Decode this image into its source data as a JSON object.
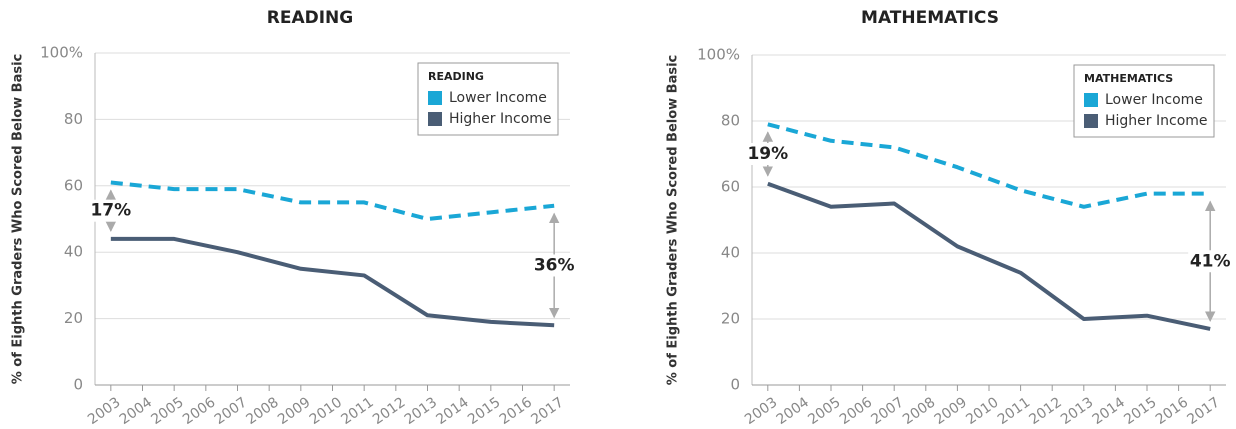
{
  "chart_data": [
    {
      "type": "line",
      "title": "READING",
      "ylabel": "% of Eighth Graders Who Scored Below Basic",
      "legend_title": "READING",
      "x": [
        2003,
        2005,
        2007,
        2009,
        2011,
        2013,
        2015,
        2017
      ],
      "xlim": [
        2002.5,
        2017.5
      ],
      "xticks": [
        2003,
        2004,
        2005,
        2006,
        2007,
        2008,
        2009,
        2010,
        2011,
        2012,
        2013,
        2014,
        2015,
        2016,
        2017
      ],
      "ylim": [
        0,
        100
      ],
      "yticks": [
        0,
        20,
        40,
        60,
        80,
        {
          "value": 100,
          "label": "100%"
        }
      ],
      "grid": true,
      "legend": "upper right",
      "series": [
        {
          "name": "Lower Income",
          "color": "#1aa7d6",
          "dashed": true,
          "values": [
            61,
            59,
            59,
            55,
            55,
            50,
            52,
            54
          ]
        },
        {
          "name": "Higher Income",
          "color": "#4a5d75",
          "dashed": false,
          "values": [
            44,
            44,
            40,
            35,
            33,
            21,
            19,
            18
          ]
        }
      ],
      "annotations": [
        {
          "text": "17%",
          "x": 2003
        },
        {
          "text": "36%",
          "x": 2017
        }
      ]
    },
    {
      "type": "line",
      "title": "MATHEMATICS",
      "ylabel": "% of Eighth Graders Who Scored Below Basic",
      "legend_title": "MATHEMATICS",
      "x": [
        2003,
        2005,
        2007,
        2009,
        2011,
        2013,
        2015,
        2017
      ],
      "xlim": [
        2002.5,
        2017.5
      ],
      "xticks": [
        2003,
        2004,
        2005,
        2006,
        2007,
        2008,
        2009,
        2010,
        2011,
        2012,
        2013,
        2014,
        2015,
        2016,
        2017
      ],
      "ylim": [
        0,
        100
      ],
      "yticks": [
        0,
        20,
        40,
        60,
        80,
        {
          "value": 100,
          "label": "100%"
        }
      ],
      "grid": true,
      "legend": "upper right",
      "series": [
        {
          "name": "Lower Income",
          "color": "#1aa7d6",
          "dashed": true,
          "values": [
            79,
            74,
            72,
            66,
            59,
            54,
            58,
            58
          ]
        },
        {
          "name": "Higher Income",
          "color": "#4a5d75",
          "dashed": false,
          "values": [
            61,
            54,
            55,
            42,
            34,
            20,
            21,
            17
          ]
        }
      ],
      "annotations": [
        {
          "text": "19%",
          "x": 2003
        },
        {
          "text": "41%",
          "x": 2017
        }
      ]
    }
  ]
}
